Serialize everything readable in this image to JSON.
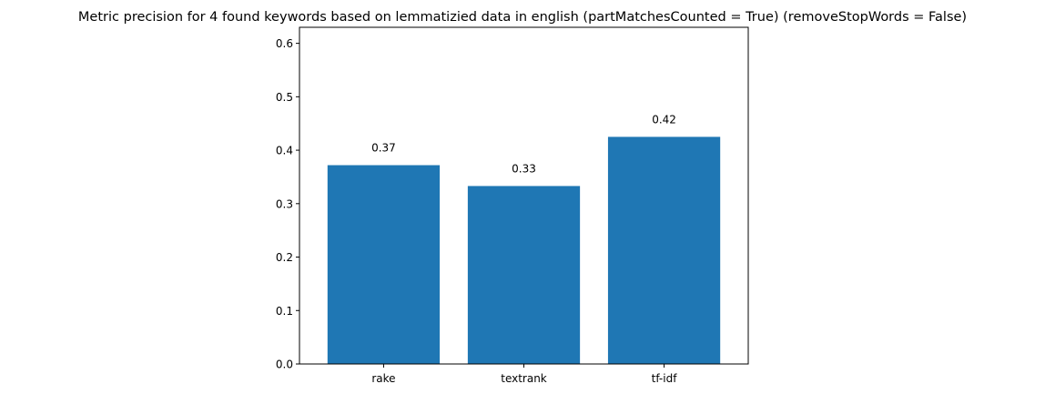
{
  "chart_data": {
    "type": "bar",
    "title": "Metric precision for 4 found keywords based on lemmatizied data in english (partMatchesCounted = True) (removeStopWords = False)",
    "xlabel": "",
    "ylabel": "",
    "categories": [
      "rake",
      "textrank",
      "tf-idf"
    ],
    "values": [
      0.372,
      0.333,
      0.425
    ],
    "data_labels": [
      "0.37",
      "0.33",
      "0.42"
    ],
    "ylim": [
      0,
      0.63
    ],
    "yticks": [
      0.0,
      0.1,
      0.2,
      0.3,
      0.4,
      0.5,
      0.6
    ],
    "ytick_labels": [
      "0.0",
      "0.1",
      "0.2",
      "0.3",
      "0.4",
      "0.5",
      "0.6"
    ],
    "grid": false,
    "bar_color": "#1f77b4"
  }
}
